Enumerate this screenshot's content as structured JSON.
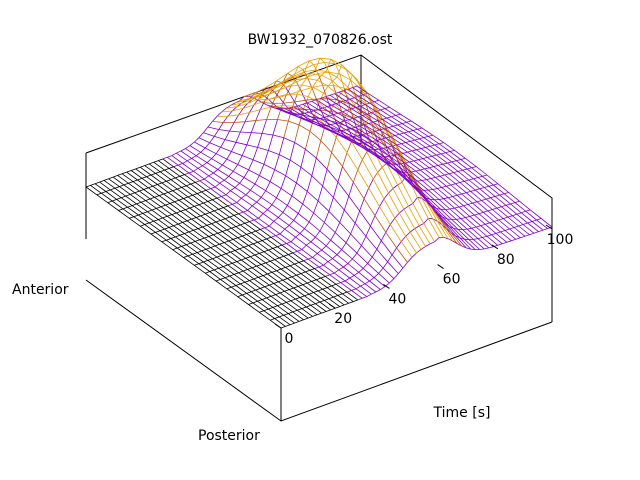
{
  "chart_data": {
    "type": "surface",
    "title": "BW1932_070826.ost",
    "xlabel": "Time [s]",
    "x_ticks": [
      "0",
      "20",
      "40",
      "60",
      "80",
      "100"
    ],
    "xlim": [
      0,
      100
    ],
    "y_axis_labels": {
      "front": "Posterior",
      "back": "Anterior"
    },
    "grid": false,
    "legend": "none",
    "colormap": [
      "#000000",
      "#7a00c8",
      "#c04a00",
      "#e6a000"
    ],
    "mesh_color_dark": "#000000",
    "mesh_color_purple": "#8000cc",
    "mesh_color_orange": "#e8a000",
    "time_samples": [
      0,
      5,
      10,
      15,
      20,
      25,
      30,
      35,
      40,
      45,
      50,
      55,
      60,
      65,
      70,
      75,
      80,
      85,
      90,
      95,
      100
    ],
    "peak_time": 57,
    "peak_height_relative": 1.0,
    "baseline_relative": 0.0,
    "tail_height_relative": 0.12
  }
}
